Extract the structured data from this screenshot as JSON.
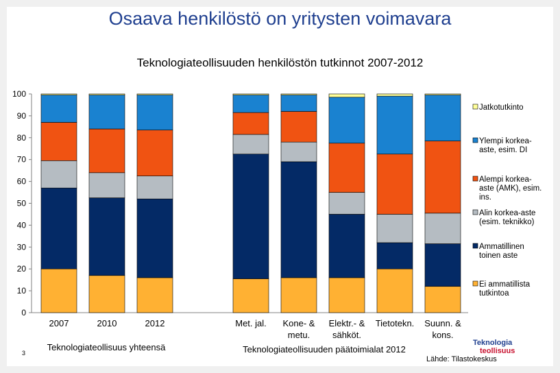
{
  "slide": {
    "title": "Osaava henkilöstö on yritysten voimavara",
    "source": "Lähde: Tilastokeskus",
    "slide_number": "3",
    "logo_line1": "Teknologia",
    "logo_line2": "teollisuus"
  },
  "chart_data": {
    "type": "bar",
    "stacked": true,
    "title": "Teknologiateollisuuden henkilöstön tutkinnot 2007-2012",
    "xlabel": "",
    "ylabel": "",
    "ylim": [
      0,
      100
    ],
    "yticks": [
      "0",
      "10",
      "20",
      "30",
      "40",
      "50",
      "60",
      "70",
      "80",
      "90",
      "100"
    ],
    "categories": [
      "2007",
      "2010",
      "2012",
      "Met. jal.",
      "Kone- & metu.",
      "Elektr.- & sähköt.",
      "Tietotekn.",
      "Suunn. & kons."
    ],
    "category_lines": [
      [
        "2007"
      ],
      [
        "2010"
      ],
      [
        "2012"
      ],
      [
        "Met. jal."
      ],
      [
        "Kone- &",
        "metu."
      ],
      [
        "Elektr.- &",
        "sähköt."
      ],
      [
        "Tietotekn."
      ],
      [
        "Suunn. &",
        "kons."
      ]
    ],
    "group_labels": [
      "Teknologiateollisuus yhteensä",
      "Teknologiateollisuuden päätoimialat 2012"
    ],
    "series": [
      {
        "name": "Ei ammatillista tutkintoa",
        "legend_lines": [
          "Ei ammatillista",
          "tutkintoa"
        ],
        "color": "#ffb133",
        "values": [
          20,
          17,
          16,
          15.5,
          16,
          16,
          20,
          12
        ]
      },
      {
        "name": "Ammatillinen toinen aste",
        "legend_lines": [
          "Ammatillinen",
          "toinen aste"
        ],
        "color": "#042a66",
        "values": [
          37,
          35.5,
          36,
          57,
          53,
          29,
          12,
          19.5
        ]
      },
      {
        "name": "Alin korkea-aste (esim. teknikko)",
        "legend_lines": [
          "Alin korkea-aste",
          "(esim. teknikko)"
        ],
        "color": "#b5bcc2",
        "values": [
          12.5,
          11.5,
          10.5,
          9,
          9,
          10,
          13,
          14
        ]
      },
      {
        "name": "Alempi korkea-aste (AMK), esim. ins.",
        "legend_lines": [
          "Alempi korkea-",
          "aste (AMK), esim.",
          "ins."
        ],
        "color": "#f05312",
        "values": [
          17.5,
          20,
          21,
          10,
          14,
          22.5,
          27.5,
          33
        ]
      },
      {
        "name": "Ylempi korkea-aste, esim. DI",
        "legend_lines": [
          "Ylempi korkea-",
          "aste, esim. DI"
        ],
        "color": "#1a82d0",
        "values": [
          12.5,
          15.5,
          16,
          8,
          7.5,
          21,
          26.5,
          21
        ]
      },
      {
        "name": "Jatkotutkinto",
        "legend_lines": [
          "Jatkotutkinto"
        ],
        "color": "#ffff99",
        "values": [
          0.5,
          0.5,
          0.5,
          0.5,
          0.5,
          1.5,
          1,
          0.5
        ]
      }
    ],
    "legend_position": "right"
  }
}
